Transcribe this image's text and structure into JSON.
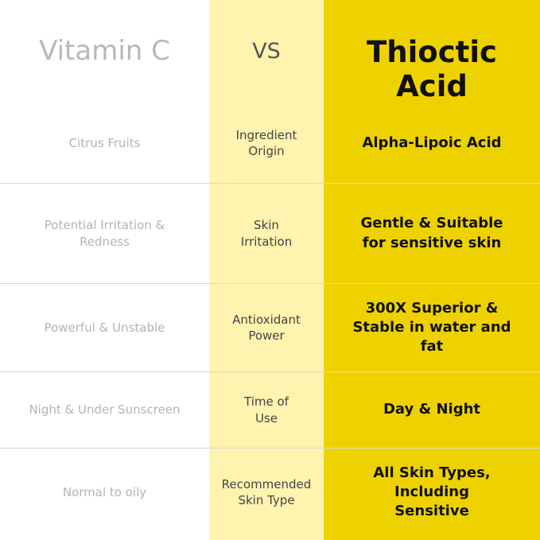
{
  "header": {
    "left": "Vitamin C",
    "middle": "VS",
    "right": "Thioctic Acid"
  },
  "rows": [
    {
      "left": "Citrus Fruits",
      "middle": "Ingredient Origin",
      "right": "Alpha-Lipoic Acid"
    },
    {
      "left": "Potential Irritation & Redness",
      "middle": "Skin Irritation",
      "right": "Gentle & Suitable for sensitive skin"
    },
    {
      "left": "Powerful & Unstable",
      "middle": "Antioxidant Power",
      "right": "300X Superior & Stable in water and fat"
    },
    {
      "left": "Night & Under Sunscreen",
      "middle": "Time of Use",
      "right": "Day & Night"
    },
    {
      "left": "Normal to oily",
      "middle": "Recommended Skin Type",
      "right": "All Skin Types, Including Sensitive"
    }
  ],
  "colors": {
    "middle_bg": "#fff3b0",
    "right_bg": "#eed200"
  }
}
